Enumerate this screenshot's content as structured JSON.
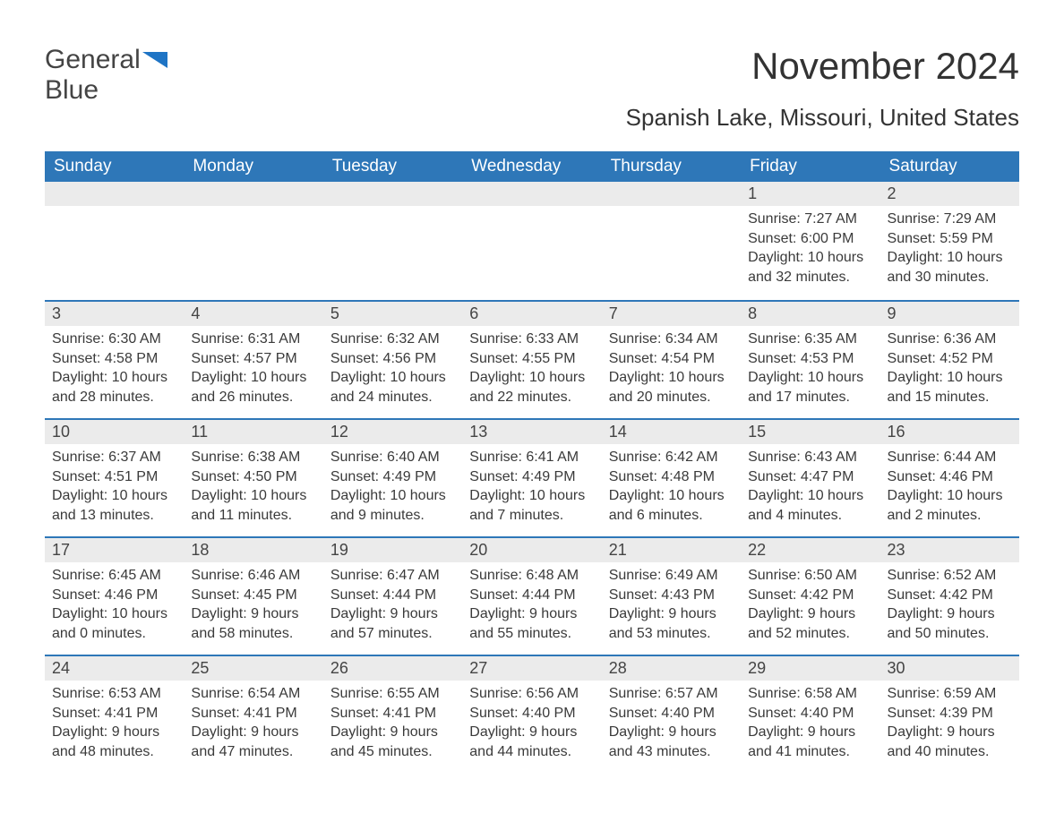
{
  "logo": {
    "word1": "General",
    "word2": "Blue",
    "accent_color": "#1e74c5"
  },
  "title": "November 2024",
  "location": "Spanish Lake, Missouri, United States",
  "day_headers": [
    "Sunday",
    "Monday",
    "Tuesday",
    "Wednesday",
    "Thursday",
    "Friday",
    "Saturday"
  ],
  "weeks": [
    [
      null,
      null,
      null,
      null,
      null,
      {
        "n": "1",
        "sunrise": "Sunrise: 7:27 AM",
        "sunset": "Sunset: 6:00 PM",
        "daylight": "Daylight: 10 hours and 32 minutes."
      },
      {
        "n": "2",
        "sunrise": "Sunrise: 7:29 AM",
        "sunset": "Sunset: 5:59 PM",
        "daylight": "Daylight: 10 hours and 30 minutes."
      }
    ],
    [
      {
        "n": "3",
        "sunrise": "Sunrise: 6:30 AM",
        "sunset": "Sunset: 4:58 PM",
        "daylight": "Daylight: 10 hours and 28 minutes."
      },
      {
        "n": "4",
        "sunrise": "Sunrise: 6:31 AM",
        "sunset": "Sunset: 4:57 PM",
        "daylight": "Daylight: 10 hours and 26 minutes."
      },
      {
        "n": "5",
        "sunrise": "Sunrise: 6:32 AM",
        "sunset": "Sunset: 4:56 PM",
        "daylight": "Daylight: 10 hours and 24 minutes."
      },
      {
        "n": "6",
        "sunrise": "Sunrise: 6:33 AM",
        "sunset": "Sunset: 4:55 PM",
        "daylight": "Daylight: 10 hours and 22 minutes."
      },
      {
        "n": "7",
        "sunrise": "Sunrise: 6:34 AM",
        "sunset": "Sunset: 4:54 PM",
        "daylight": "Daylight: 10 hours and 20 minutes."
      },
      {
        "n": "8",
        "sunrise": "Sunrise: 6:35 AM",
        "sunset": "Sunset: 4:53 PM",
        "daylight": "Daylight: 10 hours and 17 minutes."
      },
      {
        "n": "9",
        "sunrise": "Sunrise: 6:36 AM",
        "sunset": "Sunset: 4:52 PM",
        "daylight": "Daylight: 10 hours and 15 minutes."
      }
    ],
    [
      {
        "n": "10",
        "sunrise": "Sunrise: 6:37 AM",
        "sunset": "Sunset: 4:51 PM",
        "daylight": "Daylight: 10 hours and 13 minutes."
      },
      {
        "n": "11",
        "sunrise": "Sunrise: 6:38 AM",
        "sunset": "Sunset: 4:50 PM",
        "daylight": "Daylight: 10 hours and 11 minutes."
      },
      {
        "n": "12",
        "sunrise": "Sunrise: 6:40 AM",
        "sunset": "Sunset: 4:49 PM",
        "daylight": "Daylight: 10 hours and 9 minutes."
      },
      {
        "n": "13",
        "sunrise": "Sunrise: 6:41 AM",
        "sunset": "Sunset: 4:49 PM",
        "daylight": "Daylight: 10 hours and 7 minutes."
      },
      {
        "n": "14",
        "sunrise": "Sunrise: 6:42 AM",
        "sunset": "Sunset: 4:48 PM",
        "daylight": "Daylight: 10 hours and 6 minutes."
      },
      {
        "n": "15",
        "sunrise": "Sunrise: 6:43 AM",
        "sunset": "Sunset: 4:47 PM",
        "daylight": "Daylight: 10 hours and 4 minutes."
      },
      {
        "n": "16",
        "sunrise": "Sunrise: 6:44 AM",
        "sunset": "Sunset: 4:46 PM",
        "daylight": "Daylight: 10 hours and 2 minutes."
      }
    ],
    [
      {
        "n": "17",
        "sunrise": "Sunrise: 6:45 AM",
        "sunset": "Sunset: 4:46 PM",
        "daylight": "Daylight: 10 hours and 0 minutes."
      },
      {
        "n": "18",
        "sunrise": "Sunrise: 6:46 AM",
        "sunset": "Sunset: 4:45 PM",
        "daylight": "Daylight: 9 hours and 58 minutes."
      },
      {
        "n": "19",
        "sunrise": "Sunrise: 6:47 AM",
        "sunset": "Sunset: 4:44 PM",
        "daylight": "Daylight: 9 hours and 57 minutes."
      },
      {
        "n": "20",
        "sunrise": "Sunrise: 6:48 AM",
        "sunset": "Sunset: 4:44 PM",
        "daylight": "Daylight: 9 hours and 55 minutes."
      },
      {
        "n": "21",
        "sunrise": "Sunrise: 6:49 AM",
        "sunset": "Sunset: 4:43 PM",
        "daylight": "Daylight: 9 hours and 53 minutes."
      },
      {
        "n": "22",
        "sunrise": "Sunrise: 6:50 AM",
        "sunset": "Sunset: 4:42 PM",
        "daylight": "Daylight: 9 hours and 52 minutes."
      },
      {
        "n": "23",
        "sunrise": "Sunrise: 6:52 AM",
        "sunset": "Sunset: 4:42 PM",
        "daylight": "Daylight: 9 hours and 50 minutes."
      }
    ],
    [
      {
        "n": "24",
        "sunrise": "Sunrise: 6:53 AM",
        "sunset": "Sunset: 4:41 PM",
        "daylight": "Daylight: 9 hours and 48 minutes."
      },
      {
        "n": "25",
        "sunrise": "Sunrise: 6:54 AM",
        "sunset": "Sunset: 4:41 PM",
        "daylight": "Daylight: 9 hours and 47 minutes."
      },
      {
        "n": "26",
        "sunrise": "Sunrise: 6:55 AM",
        "sunset": "Sunset: 4:41 PM",
        "daylight": "Daylight: 9 hours and 45 minutes."
      },
      {
        "n": "27",
        "sunrise": "Sunrise: 6:56 AM",
        "sunset": "Sunset: 4:40 PM",
        "daylight": "Daylight: 9 hours and 44 minutes."
      },
      {
        "n": "28",
        "sunrise": "Sunrise: 6:57 AM",
        "sunset": "Sunset: 4:40 PM",
        "daylight": "Daylight: 9 hours and 43 minutes."
      },
      {
        "n": "29",
        "sunrise": "Sunrise: 6:58 AM",
        "sunset": "Sunset: 4:40 PM",
        "daylight": "Daylight: 9 hours and 41 minutes."
      },
      {
        "n": "30",
        "sunrise": "Sunrise: 6:59 AM",
        "sunset": "Sunset: 4:39 PM",
        "daylight": "Daylight: 9 hours and 40 minutes."
      }
    ]
  ],
  "style": {
    "header_bg": "#2e77b8",
    "header_fg": "#ffffff",
    "daynum_bg": "#ebebeb",
    "row_border": "#2e77b8",
    "text_color": "#3a3a3a",
    "title_fontsize": 42,
    "location_fontsize": 26,
    "th_fontsize": 19,
    "body_fontsize": 16
  }
}
